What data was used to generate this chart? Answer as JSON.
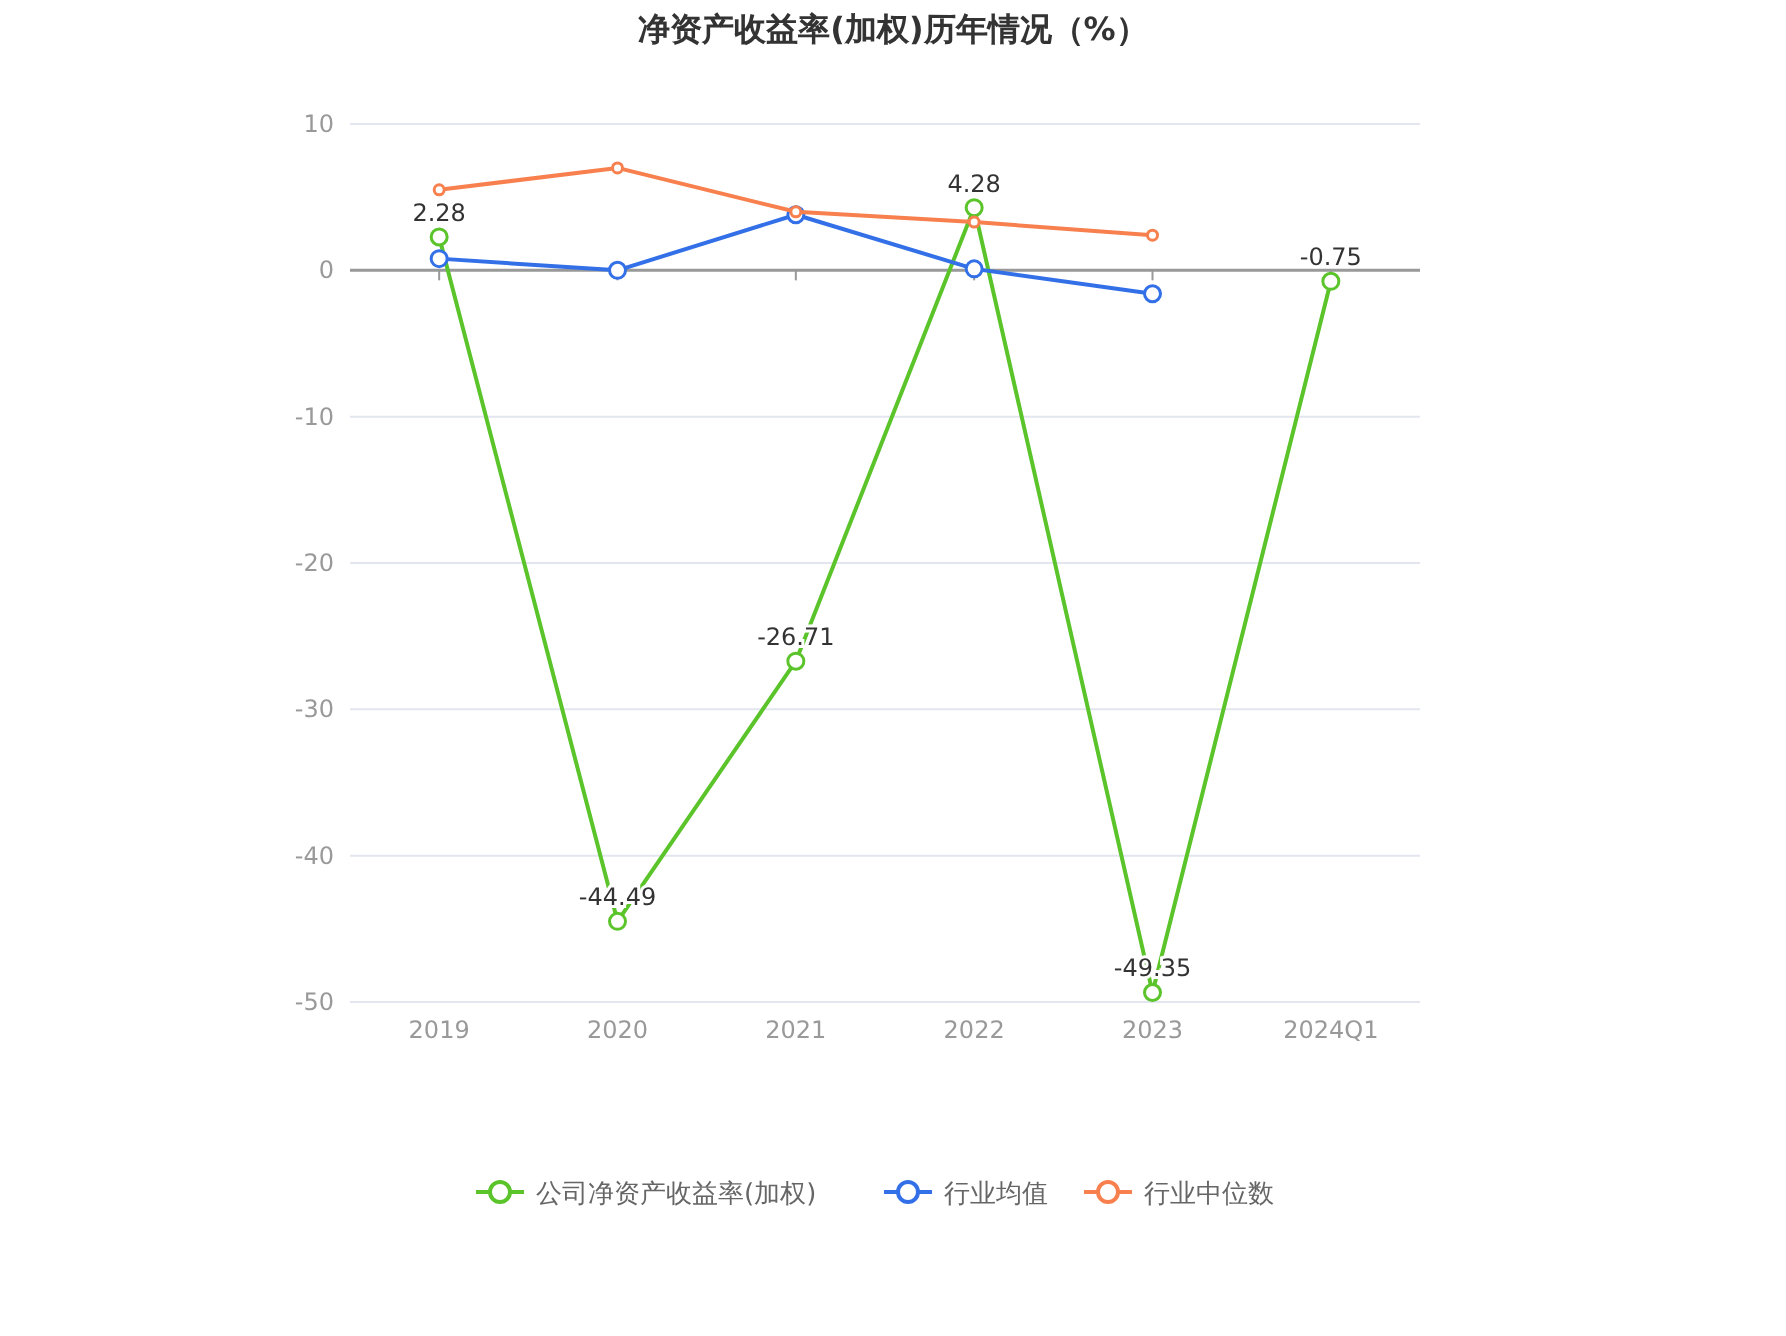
{
  "chart_data": {
    "type": "line",
    "title": "净资产收益率(加权)历年情况（%）",
    "categories": [
      "2019",
      "2020",
      "2021",
      "2022",
      "2023",
      "2024Q1"
    ],
    "series": [
      {
        "name": "公司净资产收益率(加权)",
        "color": "#5ac42a",
        "values": [
          2.28,
          -44.49,
          -26.71,
          4.28,
          -49.35,
          -0.75
        ],
        "value_labels": [
          "2.28",
          "-44.49",
          "-26.71",
          "4.28",
          "-49.35",
          "-0.75"
        ]
      },
      {
        "name": "行业均值",
        "color": "#3370e8",
        "values": [
          0.8,
          0,
          3.8,
          0.1,
          -1.6,
          null
        ]
      },
      {
        "name": "行业中位数",
        "color": "#f7804e",
        "values": [
          5.5,
          7.0,
          4.0,
          3.3,
          2.4,
          null
        ]
      }
    ],
    "ylim": [
      -50,
      10
    ],
    "yticks": [
      -50,
      -40,
      -30,
      -20,
      -10,
      0,
      10
    ],
    "grid": "y",
    "legend": "bottom",
    "marker": "circle",
    "line_style": "solid"
  }
}
